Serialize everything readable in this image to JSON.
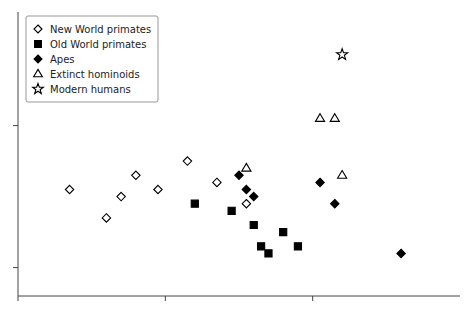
{
  "chart_data": {
    "type": "scatter",
    "series": [
      {
        "name": "New World primates",
        "color": "#000000",
        "marker": "diamond-open",
        "x": [
          1.35,
          1.6,
          1.7,
          1.8,
          1.95,
          2.15,
          2.35,
          2.55
        ],
        "values": [
          2.55,
          2.35,
          2.5,
          2.65,
          2.55,
          2.75,
          2.6,
          2.45
        ]
      },
      {
        "name": "Old World primates",
        "color": "#000000",
        "marker": "square",
        "x": [
          2.2,
          2.45,
          2.6,
          2.65,
          2.7,
          2.8,
          2.9
        ],
        "values": [
          2.45,
          2.4,
          2.3,
          2.15,
          2.1,
          2.25,
          2.15
        ]
      },
      {
        "name": "Apes",
        "color": "#000000",
        "marker": "diamond",
        "x": [
          2.5,
          2.55,
          2.6,
          3.05,
          3.15,
          3.6
        ],
        "values": [
          2.65,
          2.55,
          2.5,
          2.6,
          2.45,
          2.1
        ]
      },
      {
        "name": "Extinct hominoids",
        "color": "#000000",
        "marker": "triangle-open",
        "x": [
          2.55,
          3.05,
          3.15,
          3.2
        ],
        "values": [
          2.7,
          3.05,
          3.05,
          2.65
        ]
      },
      {
        "name": "Modern humans",
        "color": "#000000",
        "marker": "star-open",
        "x": [
          3.2
        ],
        "values": [
          3.5
        ]
      }
    ],
    "xlim": [
      1.0,
      4.0
    ],
    "ylim": [
      1.8,
      3.8
    ],
    "xticks": [
      1.0,
      2.0,
      3.0
    ],
    "yticks": [
      2.0,
      3.0
    ],
    "tick_labels": false,
    "grid": false,
    "legend": "upper left"
  }
}
